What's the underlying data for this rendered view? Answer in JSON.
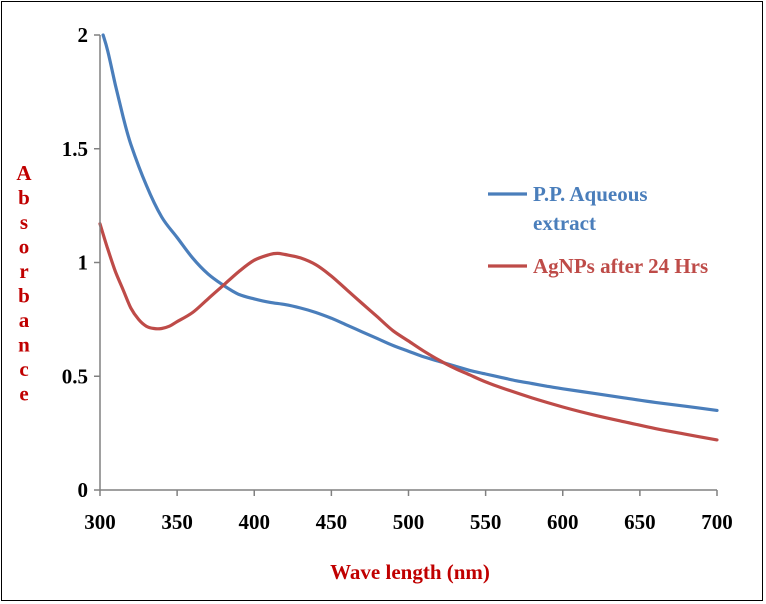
{
  "chart_data": {
    "type": "line",
    "title": "",
    "xlabel": "Wave length (nm)",
    "ylabel": "Absorbance",
    "xlim": [
      300,
      700
    ],
    "ylim": [
      0,
      2
    ],
    "xticks": [
      300,
      350,
      400,
      450,
      500,
      550,
      600,
      650,
      700
    ],
    "yticks": [
      0,
      0.5,
      1,
      1.5,
      2
    ],
    "ytick_labels": [
      "0",
      "0.5",
      "1",
      "1.5",
      "2"
    ],
    "grid": false,
    "legend_position": "right",
    "label_color": "#C00000",
    "series": [
      {
        "name": "P.P. Aqueous extract",
        "color": "#4A7EBB",
        "x": [
          302,
          305,
          310,
          315,
          320,
          330,
          340,
          350,
          360,
          370,
          380,
          390,
          400,
          410,
          420,
          430,
          440,
          450,
          460,
          470,
          480,
          490,
          500,
          510,
          520,
          530,
          540,
          550,
          560,
          570,
          580,
          590,
          600,
          620,
          640,
          660,
          680,
          700
        ],
        "y": [
          2.0,
          1.93,
          1.78,
          1.64,
          1.52,
          1.34,
          1.2,
          1.11,
          1.02,
          0.95,
          0.9,
          0.86,
          0.84,
          0.825,
          0.815,
          0.8,
          0.78,
          0.755,
          0.725,
          0.695,
          0.665,
          0.635,
          0.61,
          0.585,
          0.565,
          0.545,
          0.525,
          0.51,
          0.495,
          0.48,
          0.468,
          0.456,
          0.445,
          0.425,
          0.405,
          0.385,
          0.368,
          0.35
        ]
      },
      {
        "name": "AgNPs after 24 Hrs",
        "color": "#BE4B48",
        "x": [
          300,
          305,
          310,
          315,
          320,
          325,
          330,
          335,
          340,
          345,
          350,
          360,
          370,
          380,
          390,
          400,
          410,
          415,
          420,
          430,
          440,
          450,
          460,
          470,
          480,
          490,
          500,
          510,
          520,
          530,
          540,
          550,
          560,
          580,
          600,
          620,
          640,
          660,
          680,
          700
        ],
        "y": [
          1.17,
          1.06,
          0.96,
          0.88,
          0.8,
          0.75,
          0.72,
          0.71,
          0.71,
          0.72,
          0.74,
          0.78,
          0.84,
          0.9,
          0.96,
          1.01,
          1.035,
          1.04,
          1.035,
          1.02,
          0.99,
          0.94,
          0.88,
          0.82,
          0.76,
          0.7,
          0.655,
          0.61,
          0.57,
          0.535,
          0.505,
          0.475,
          0.45,
          0.405,
          0.365,
          0.33,
          0.3,
          0.27,
          0.245,
          0.22
        ]
      }
    ]
  }
}
